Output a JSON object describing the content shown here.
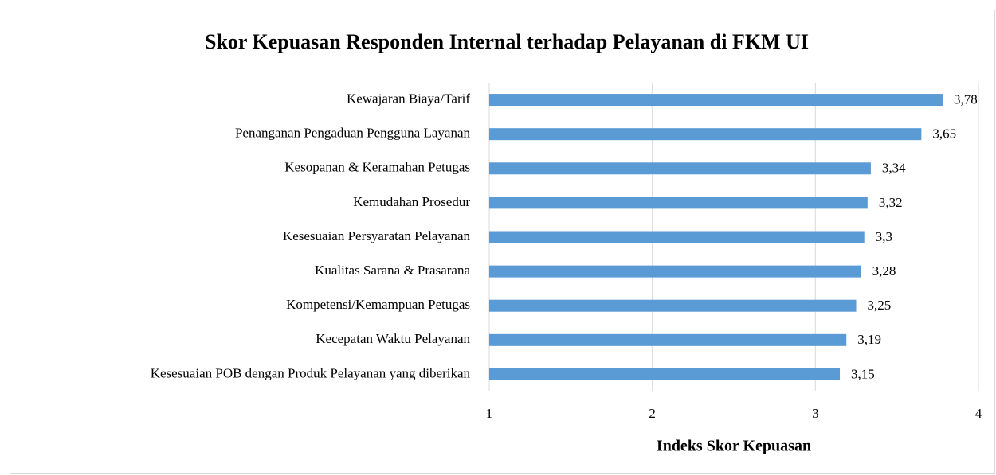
{
  "chart_data": {
    "type": "bar",
    "orientation": "horizontal",
    "title": "Skor Kepuasan Responden Internal terhadap Pelayanan di FKM UI",
    "x_label": "Indeks Skor Kepuasan",
    "categories": [
      "Kewajaran Biaya/Tarif",
      "Penanganan Pengaduan Pengguna Layanan",
      "Kesopanan & Keramahan Petugas",
      "Kemudahan Prosedur",
      "Kesesuaian Persyaratan Pelayanan",
      "Kualitas Sarana & Prasarana",
      "Kompetensi/Kemampuan Petugas",
      "Kecepatan Waktu Pelayanan",
      "Kesesuaian POB dengan Produk Pelayanan yang diberikan"
    ],
    "values": [
      3.78,
      3.65,
      3.34,
      3.32,
      3.3,
      3.28,
      3.25,
      3.19,
      3.15
    ],
    "value_labels": [
      "3,78",
      "3,65",
      "3,34",
      "3,32",
      "3,3",
      "3,28",
      "3,25",
      "3,19",
      "3,15"
    ],
    "color": "#5b9bd5",
    "xlim": [
      1,
      4
    ],
    "xticks": [
      1,
      2,
      3,
      4
    ],
    "grid": true
  }
}
